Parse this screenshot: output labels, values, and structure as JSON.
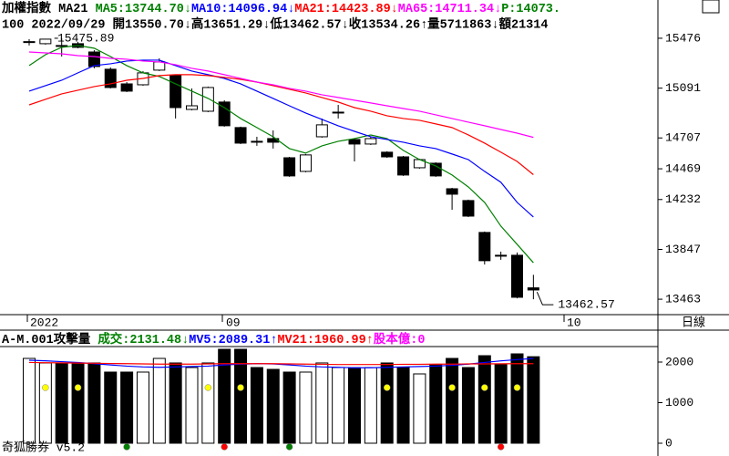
{
  "chart_data": [
    {
      "type": "candlestick",
      "header": [
        {
          "text": "加權指數 MA21 ",
          "color": "#000000"
        },
        {
          "text": "MA5:13744.70↓",
          "color": "#008000"
        },
        {
          "text": "MA10:14096.94↓",
          "color": "#0000ff"
        },
        {
          "text": "MA21:14423.89↓",
          "color": "#ff0000"
        },
        {
          "text": "MA65:14711.34↓",
          "color": "#ff00ff"
        },
        {
          "text": "P:14073.",
          "color": "#008000"
        }
      ],
      "subtitle": "100 2022/09/29 開13550.70↓高13651.29↓低13462.57↓收13534.26↑量5711863↓額21314",
      "open": [
        15448,
        15434,
        15420,
        15434,
        15370,
        15237,
        15124,
        15117,
        15230,
        15188,
        14927,
        14913,
        14984,
        14787,
        14681,
        14702,
        14554,
        14449,
        14716,
        14899,
        14695,
        14660,
        14597,
        14561,
        14477,
        14512,
        14315,
        14224,
        13978,
        13802,
        13802,
        13550.7
      ],
      "high": [
        15469,
        15472,
        15475.89,
        15448,
        15384,
        15251,
        15138,
        15223,
        15321,
        15195,
        15089,
        15103,
        14998,
        14794,
        14716,
        14765,
        14561,
        14583,
        14857,
        14962,
        14702,
        14716,
        14604,
        14568,
        14547,
        14519,
        14322,
        14231,
        13985,
        13830,
        13823,
        13651.29
      ],
      "low": [
        15420,
        15427,
        15335,
        15399,
        15244,
        15089,
        15061,
        15110,
        15223,
        14857,
        14920,
        14906,
        14794,
        14660,
        14646,
        14625,
        14407,
        14442,
        14709,
        14857,
        14526,
        14653,
        14554,
        14414,
        14470,
        14407,
        14153,
        14097,
        13731,
        13767,
        13470,
        13462.57
      ],
      "close": [
        15450,
        15469,
        15413,
        15406,
        15258,
        15096,
        15068,
        15209,
        15293,
        14941,
        14955,
        15096,
        14801,
        14667,
        14674,
        14674,
        14414,
        14576,
        14808,
        14906,
        14660,
        14702,
        14561,
        14421,
        14540,
        14414,
        14273,
        14104,
        13760,
        13795,
        13478,
        13534.26
      ],
      "up_color": "#ffffff",
      "down_color": "#000000",
      "series": [
        {
          "color": "#008000",
          "values": [
            15265,
            15349,
            15406,
            15420,
            15399,
            15335,
            15265,
            15209,
            15181,
            15124,
            15068,
            15012,
            14941,
            14857,
            14787,
            14716,
            14625,
            14590,
            14646,
            14681,
            14702,
            14730,
            14702,
            14611,
            14540,
            14491,
            14421,
            14329,
            14210,
            14027,
            13886,
            13744.7
          ]
        },
        {
          "color": "#0000ff",
          "values": [
            15068,
            15110,
            15152,
            15209,
            15265,
            15279,
            15300,
            15307,
            15307,
            15265,
            15223,
            15195,
            15166,
            15124,
            15068,
            15012,
            14955,
            14899,
            14850,
            14801,
            14758,
            14716,
            14695,
            14674,
            14646,
            14625,
            14583,
            14540,
            14449,
            14365,
            14210,
            14096.94
          ]
        },
        {
          "color": "#ff0000",
          "values": [
            14962,
            15005,
            15047,
            15075,
            15103,
            15124,
            15152,
            15166,
            15188,
            15195,
            15195,
            15188,
            15174,
            15159,
            15138,
            15110,
            15082,
            15054,
            15019,
            14984,
            14941,
            14913,
            14878,
            14857,
            14843,
            14815,
            14787,
            14730,
            14667,
            14597,
            14526,
            14423.89
          ]
        },
        {
          "color": "#ff00ff",
          "values": [
            15370,
            15363,
            15356,
            15342,
            15335,
            15321,
            15314,
            15300,
            15293,
            15272,
            15244,
            15223,
            15195,
            15166,
            15138,
            15117,
            15089,
            15068,
            15040,
            15019,
            14998,
            14977,
            14955,
            14934,
            14913,
            14885,
            14857,
            14829,
            14801,
            14772,
            14744,
            14711.34
          ]
        }
      ],
      "ylim": [
        13344,
        15771
      ],
      "yticks": [
        15476,
        15091,
        14707,
        14469,
        14232,
        13847,
        13463
      ],
      "x_labels": [
        "2022",
        "09",
        "10"
      ],
      "period_label": "日線",
      "annotations": [
        {
          "text": "15475.89"
        },
        {
          "text": "13462.57"
        }
      ]
    },
    {
      "type": "bar",
      "header": [
        {
          "text": "A-M.001攻擊量 ",
          "color": "#000000"
        },
        {
          "text": "成交:2131.48↓",
          "color": "#008000"
        },
        {
          "text": "MV5:2089.31↑",
          "color": "#0000ff"
        },
        {
          "text": "MV21:1960.99↑",
          "color": "#ff0000"
        },
        {
          "text": "股本億:0",
          "color": "#ff00ff"
        }
      ],
      "values": [
        2090,
        1978,
        1978,
        1978,
        1978,
        1753,
        1753,
        1753,
        2090,
        1978,
        1865,
        1978,
        2315,
        2315,
        1865,
        1820,
        1753,
        1753,
        1978,
        1865,
        1865,
        1865,
        1978,
        1865,
        1708,
        1933,
        2090,
        1865,
        2157,
        1933,
        2202,
        2131.48
      ],
      "series": [
        {
          "color": "#0000ff",
          "values": [
            2045,
            2030,
            2010,
            1990,
            1960,
            1930,
            1900,
            1880,
            1870,
            1880,
            1890,
            1900,
            1930,
            1950,
            1960,
            1955,
            1930,
            1900,
            1880,
            1870,
            1860,
            1860,
            1870,
            1880,
            1890,
            1900,
            1920,
            1950,
            1990,
            2030,
            2060,
            2089.31
          ]
        },
        {
          "color": "#ff0000",
          "values": [
            1990,
            1985,
            1980,
            1975,
            1970,
            1965,
            1960,
            1955,
            1950,
            1950,
            1950,
            1955,
            1960,
            1960,
            1960,
            1960,
            1955,
            1950,
            1945,
            1940,
            1940,
            1940,
            1940,
            1945,
            1945,
            1950,
            1950,
            1955,
            1955,
            1958,
            1960,
            1960.99
          ]
        }
      ],
      "upper_signals": [
        null,
        "#ffff00",
        null,
        "#ffff00",
        null,
        null,
        null,
        null,
        null,
        null,
        null,
        "#ffff00",
        null,
        "#ffff00",
        null,
        null,
        null,
        null,
        null,
        null,
        null,
        null,
        "#ffff00",
        null,
        null,
        null,
        "#ffff00",
        null,
        "#ffff00",
        null,
        "#ffff00",
        null
      ],
      "lower_signals": [
        null,
        null,
        null,
        null,
        null,
        null,
        "#008000",
        null,
        null,
        null,
        null,
        null,
        "#ff0000",
        null,
        null,
        null,
        "#008000",
        null,
        null,
        null,
        null,
        null,
        null,
        null,
        null,
        null,
        null,
        null,
        null,
        "#ff0000",
        null,
        null
      ],
      "ylim": [
        -315,
        2382
      ],
      "yticks": [
        2000,
        1000,
        0
      ]
    }
  ],
  "footer": "奇狐勝券 v5.2"
}
